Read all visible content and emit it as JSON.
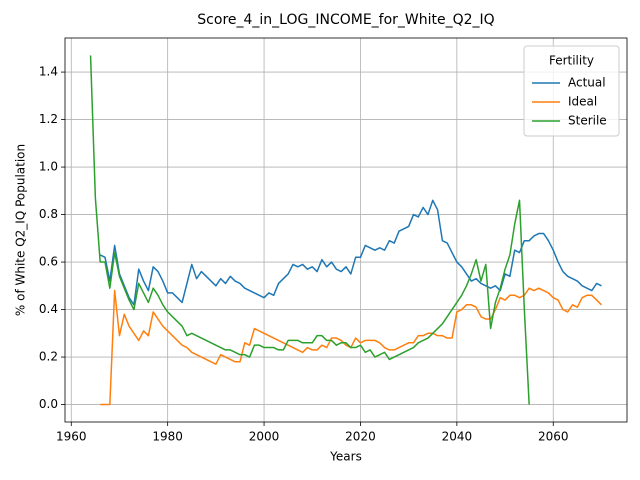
{
  "chart_data": {
    "type": "line",
    "title": "Score_4_in_LOG_INCOME_for_White_Q2_IQ",
    "x_label": "Years",
    "y_label": "% of White Q2_IQ Population",
    "legend_title": "Fertility",
    "legend_position": "upper right",
    "grid": true,
    "xlim": [
      1958.7,
      2075.3
    ],
    "ylim": [
      -0.0735,
      1.5435
    ],
    "xticks": [
      1960,
      1980,
      2000,
      2020,
      2040,
      2060
    ],
    "yticks": [
      {
        "value": 0,
        "label": "0.0"
      },
      {
        "value": 0.2,
        "label": "0.2"
      },
      {
        "value": 0.4,
        "label": "0.4"
      },
      {
        "value": 0.6,
        "label": "0.6"
      },
      {
        "value": 0.8,
        "label": "0.8"
      },
      {
        "value": 1.0,
        "label": "1.0"
      },
      {
        "value": 1.2,
        "label": "1.2"
      },
      {
        "value": 1.4,
        "label": "1.4"
      }
    ],
    "series": [
      {
        "name": "Actual",
        "color": "#1f77b4",
        "x": [
          1966,
          1967,
          1968,
          1969,
          1970,
          1971,
          1972,
          1973,
          1974,
          1975,
          1976,
          1977,
          1978,
          1979,
          1980,
          1981,
          1982,
          1983,
          1984,
          1985,
          1986,
          1987,
          1988,
          1989,
          1990,
          1991,
          1992,
          1993,
          1994,
          1995,
          1996,
          1997,
          1998,
          1999,
          2000,
          2001,
          2002,
          2003,
          2004,
          2005,
          2006,
          2007,
          2008,
          2009,
          2010,
          2011,
          2012,
          2013,
          2014,
          2015,
          2016,
          2017,
          2018,
          2019,
          2020,
          2021,
          2022,
          2023,
          2024,
          2025,
          2026,
          2027,
          2028,
          2029,
          2030,
          2031,
          2032,
          2033,
          2034,
          2035,
          2036,
          2037,
          2038,
          2039,
          2040,
          2041,
          2042,
          2043,
          2044,
          2045,
          2046,
          2047,
          2048,
          2049,
          2050,
          2051,
          2052,
          2053,
          2054,
          2055,
          2056,
          2057,
          2058,
          2059,
          2060,
          2061,
          2062,
          2063,
          2064,
          2065,
          2066,
          2067,
          2068,
          2069,
          2070
        ],
        "values": [
          0.63,
          0.62,
          0.52,
          0.67,
          0.55,
          0.5,
          0.45,
          0.42,
          0.57,
          0.52,
          0.48,
          0.58,
          0.56,
          0.52,
          0.47,
          0.47,
          0.45,
          0.43,
          0.51,
          0.59,
          0.53,
          0.56,
          0.54,
          0.52,
          0.5,
          0.53,
          0.51,
          0.54,
          0.52,
          0.51,
          0.49,
          0.48,
          0.47,
          0.46,
          0.45,
          0.47,
          0.46,
          0.51,
          0.53,
          0.55,
          0.59,
          0.58,
          0.59,
          0.57,
          0.58,
          0.56,
          0.61,
          0.58,
          0.6,
          0.57,
          0.56,
          0.58,
          0.55,
          0.62,
          0.62,
          0.67,
          0.66,
          0.65,
          0.66,
          0.65,
          0.69,
          0.68,
          0.73,
          0.74,
          0.75,
          0.8,
          0.79,
          0.83,
          0.8,
          0.86,
          0.82,
          0.69,
          0.68,
          0.64,
          0.6,
          0.58,
          0.55,
          0.52,
          0.53,
          0.51,
          0.5,
          0.49,
          0.5,
          0.48,
          0.55,
          0.54,
          0.65,
          0.64,
          0.69,
          0.69,
          0.71,
          0.72,
          0.72,
          0.69,
          0.65,
          0.6,
          0.56,
          0.54,
          0.53,
          0.52,
          0.5,
          0.49,
          0.48,
          0.51,
          0.5
        ]
      },
      {
        "name": "Ideal",
        "color": "#ff7f0e",
        "x": [
          1966,
          1967,
          1968,
          1969,
          1970,
          1971,
          1972,
          1973,
          1974,
          1975,
          1976,
          1977,
          1978,
          1979,
          1980,
          1981,
          1982,
          1983,
          1984,
          1985,
          1986,
          1987,
          1988,
          1989,
          1990,
          1991,
          1992,
          1993,
          1994,
          1995,
          1996,
          1997,
          1998,
          1999,
          2000,
          2001,
          2002,
          2003,
          2004,
          2005,
          2006,
          2007,
          2008,
          2009,
          2010,
          2011,
          2012,
          2013,
          2014,
          2015,
          2016,
          2017,
          2018,
          2019,
          2020,
          2021,
          2022,
          2023,
          2024,
          2025,
          2026,
          2027,
          2028,
          2029,
          2030,
          2031,
          2032,
          2033,
          2034,
          2035,
          2036,
          2037,
          2038,
          2039,
          2040,
          2041,
          2042,
          2043,
          2044,
          2045,
          2046,
          2047,
          2048,
          2049,
          2050,
          2051,
          2052,
          2053,
          2054,
          2055,
          2056,
          2057,
          2058,
          2059,
          2060,
          2061,
          2062,
          2063,
          2064,
          2065,
          2066,
          2067,
          2068,
          2069,
          2070
        ],
        "values": [
          0.0,
          0.0,
          0.0,
          0.48,
          0.29,
          0.38,
          0.33,
          0.3,
          0.27,
          0.31,
          0.29,
          0.39,
          0.36,
          0.33,
          0.31,
          0.29,
          0.27,
          0.25,
          0.24,
          0.22,
          0.21,
          0.2,
          0.19,
          0.18,
          0.17,
          0.21,
          0.2,
          0.19,
          0.18,
          0.18,
          0.26,
          0.25,
          0.32,
          0.31,
          0.3,
          0.29,
          0.28,
          0.27,
          0.26,
          0.25,
          0.24,
          0.23,
          0.22,
          0.24,
          0.23,
          0.23,
          0.25,
          0.24,
          0.28,
          0.28,
          0.27,
          0.25,
          0.24,
          0.28,
          0.26,
          0.27,
          0.27,
          0.27,
          0.26,
          0.24,
          0.23,
          0.23,
          0.24,
          0.25,
          0.26,
          0.26,
          0.29,
          0.29,
          0.3,
          0.3,
          0.29,
          0.29,
          0.28,
          0.28,
          0.39,
          0.4,
          0.42,
          0.42,
          0.41,
          0.37,
          0.36,
          0.36,
          0.4,
          0.45,
          0.44,
          0.46,
          0.46,
          0.45,
          0.46,
          0.49,
          0.48,
          0.49,
          0.48,
          0.47,
          0.45,
          0.44,
          0.4,
          0.39,
          0.42,
          0.41,
          0.45,
          0.46,
          0.46,
          0.44,
          0.42
        ]
      },
      {
        "name": "Sterile",
        "color": "#2ca02c",
        "x": [
          1964,
          1965,
          1966,
          1967,
          1968,
          1969,
          1970,
          1971,
          1972,
          1973,
          1974,
          1975,
          1976,
          1977,
          1978,
          1979,
          1980,
          1981,
          1982,
          1983,
          1984,
          1985,
          1986,
          1987,
          1988,
          1989,
          1990,
          1991,
          1992,
          1993,
          1994,
          1995,
          1996,
          1997,
          1998,
          1999,
          2000,
          2001,
          2002,
          2003,
          2004,
          2005,
          2006,
          2007,
          2008,
          2009,
          2010,
          2011,
          2012,
          2013,
          2014,
          2015,
          2016,
          2017,
          2018,
          2019,
          2020,
          2021,
          2022,
          2023,
          2024,
          2025,
          2026,
          2027,
          2028,
          2029,
          2030,
          2031,
          2032,
          2033,
          2034,
          2035,
          2036,
          2037,
          2038,
          2039,
          2040,
          2041,
          2042,
          2043,
          2044,
          2045,
          2046,
          2047,
          2048,
          2049,
          2050,
          2051,
          2052,
          2053,
          2054,
          2055
        ],
        "values": [
          1.47,
          0.87,
          0.6,
          0.6,
          0.49,
          0.64,
          0.54,
          0.49,
          0.44,
          0.4,
          0.51,
          0.47,
          0.43,
          0.49,
          0.46,
          0.42,
          0.39,
          0.37,
          0.35,
          0.33,
          0.29,
          0.3,
          0.29,
          0.28,
          0.27,
          0.26,
          0.25,
          0.24,
          0.23,
          0.23,
          0.22,
          0.21,
          0.21,
          0.2,
          0.25,
          0.25,
          0.24,
          0.24,
          0.24,
          0.23,
          0.23,
          0.27,
          0.27,
          0.27,
          0.26,
          0.26,
          0.26,
          0.29,
          0.29,
          0.27,
          0.27,
          0.25,
          0.26,
          0.26,
          0.24,
          0.24,
          0.25,
          0.22,
          0.23,
          0.2,
          0.21,
          0.22,
          0.19,
          0.2,
          0.21,
          0.22,
          0.23,
          0.24,
          0.26,
          0.27,
          0.28,
          0.3,
          0.32,
          0.34,
          0.37,
          0.4,
          0.43,
          0.46,
          0.5,
          0.55,
          0.61,
          0.52,
          0.59,
          0.32,
          0.43,
          0.49,
          0.57,
          0.63,
          0.76,
          0.86,
          0.4,
          0.0
        ]
      }
    ]
  }
}
